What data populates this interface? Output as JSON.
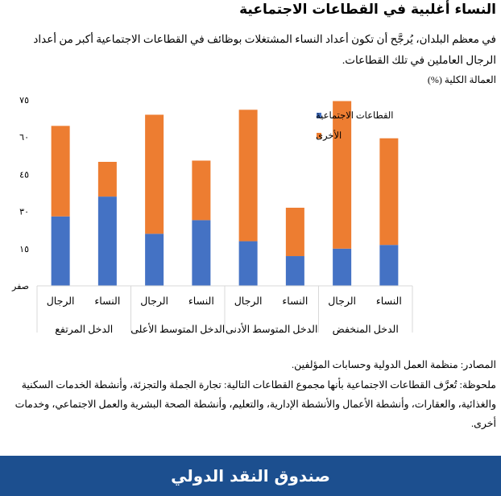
{
  "header": {
    "title": "النساء أغلبية في القطاعات الاجتماعية",
    "subtitle": "في معظم البلدان، يُرجَّح أن تكون أعداد النساء المشتغلات بوظائف في القطاعات الاجتماعية أكبر من أعداد الرجال العاملين في تلك القطاعات."
  },
  "chart_data": {
    "type": "bar",
    "stacked": true,
    "ylabel": "العمالة الكلية (%)",
    "ylim": [
      0,
      75
    ],
    "yticks": [
      0,
      15,
      30,
      45,
      60,
      75
    ],
    "ytick_labels": [
      "صفر",
      "١٥",
      "٣٠",
      "٤٥",
      "٦٠",
      "٧٥"
    ],
    "grid": false,
    "legend_placement": "top-right inside",
    "groups": [
      "الدخل المرتفع",
      "الدخل المتوسط الأعلى",
      "الدخل المتوسط الأدنى",
      "الدخل المنخفض"
    ],
    "categories": [
      "الرجال",
      "النساء",
      "الرجال",
      "النساء",
      "الرجال",
      "النساء",
      "الرجال",
      "النساء"
    ],
    "series": [
      {
        "name": "القطاعات الاجتماعية",
        "color": "#4472c4",
        "values": [
          28,
          36,
          21,
          26.5,
          18,
          12,
          15,
          16.5
        ]
      },
      {
        "name": "الأخرى",
        "color": "#ed7d31",
        "values": [
          36.5,
          14,
          48,
          24,
          53,
          19.5,
          59.5,
          43
        ]
      }
    ]
  },
  "footer": {
    "source": "المصادر: منظمة العمل الدولية وحسابات المؤلفين.",
    "note": "ملحوظة: تُعرَّف القطاعات الاجتماعية بأنها مجموع القطاعات التالية: تجارة الجملة والتجزئة، وأنشطة الخدمات السكنية والغذائية، والعقارات، وأنشطة الأعمال والأنشطة الإدارية، والتعليم، وأنشطة الصحة البشرية والعمل الاجتماعي، وخدمات أخرى.",
    "brand": "صندوق النقد الدولي",
    "brand_color": "#1c4f8f"
  }
}
